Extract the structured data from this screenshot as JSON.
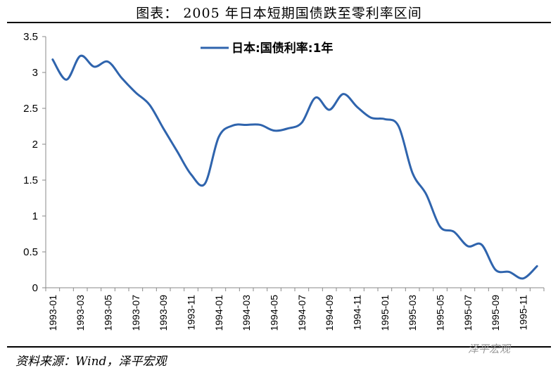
{
  "header": {
    "title": "图表： 2005 年日本短期国债跌至零利率区间"
  },
  "footer": {
    "source": "资料来源：Wind，泽平宏观",
    "watermark": "泽平宏观"
  },
  "chart_data": {
    "type": "line",
    "title": "图表： 2005 年日本短期国债跌至零利率区间",
    "xlabel": "",
    "ylabel": "",
    "ylim": [
      0,
      3.5
    ],
    "yticks": [
      "0",
      "0.5",
      "1",
      "1.5",
      "2",
      "2.5",
      "3",
      "3.5"
    ],
    "xtick_labels": [
      "1993-01",
      "1993-03",
      "1993-05",
      "1993-07",
      "1993-09",
      "1993-11",
      "1994-01",
      "1994-03",
      "1994-05",
      "1994-07",
      "1994-09",
      "1994-11",
      "1995-01",
      "1995-03",
      "1995-05",
      "1995-07",
      "1995-09",
      "1995-11"
    ],
    "grid": false,
    "legend_position": "top-center",
    "color": "#2f64ad",
    "x": [
      "1993-01",
      "1993-02",
      "1993-03",
      "1993-04",
      "1993-05",
      "1993-06",
      "1993-07",
      "1993-08",
      "1993-09",
      "1993-10",
      "1993-11",
      "1993-12",
      "1994-01",
      "1994-02",
      "1994-03",
      "1994-04",
      "1994-05",
      "1994-06",
      "1994-07",
      "1994-08",
      "1994-09",
      "1994-10",
      "1994-11",
      "1994-12",
      "1995-01",
      "1995-02",
      "1995-03",
      "1995-04",
      "1995-05",
      "1995-06",
      "1995-07",
      "1995-08",
      "1995-09",
      "1995-10",
      "1995-11",
      "1995-12"
    ],
    "series": [
      {
        "name": "日本:国债利率:1年",
        "values": [
          3.18,
          2.9,
          3.23,
          3.08,
          3.15,
          2.92,
          2.72,
          2.55,
          2.22,
          1.9,
          1.58,
          1.45,
          2.1,
          2.26,
          2.27,
          2.27,
          2.19,
          2.22,
          2.3,
          2.65,
          2.48,
          2.7,
          2.52,
          2.37,
          2.35,
          2.25,
          1.6,
          1.3,
          0.85,
          0.78,
          0.58,
          0.6,
          0.25,
          0.22,
          0.13,
          0.3
        ]
      }
    ]
  }
}
